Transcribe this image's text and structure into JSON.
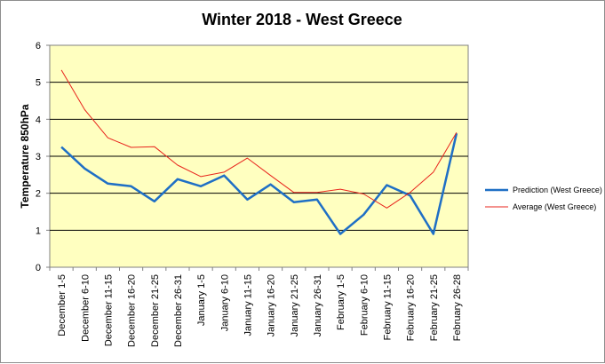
{
  "chart_data": {
    "type": "line",
    "title": "Winter 2018 - West Greece",
    "xlabel": "",
    "ylabel": "Temperature 850hPa",
    "ylim": [
      0,
      6
    ],
    "yticks": [
      0,
      1,
      2,
      3,
      4,
      5,
      6
    ],
    "grid": "horizontal",
    "legend_position": "right",
    "plot_background": "#ffffc0",
    "categories": [
      "December 1-5",
      "December 6-10",
      "December 11-15",
      "December 16-20",
      "December 21-25",
      "December 26-31",
      "January 1-5",
      "January 6-10",
      "January 11-15",
      "January 16-20",
      "January 21-25",
      "January 26-31",
      "February 1-5",
      "February 6-10",
      "February 11-15",
      "February 16-20",
      "February 21-25",
      "February 26-28"
    ],
    "series": [
      {
        "name": "Prediction (West Greece)",
        "color": "#1f6fc5",
        "values": [
          3.25,
          2.67,
          2.26,
          2.19,
          1.78,
          2.38,
          2.19,
          2.48,
          1.83,
          2.24,
          1.76,
          1.83,
          0.9,
          1.42,
          2.22,
          1.94,
          0.9,
          3.62
        ]
      },
      {
        "name": "Average (West Greece)",
        "color": "#e8241c",
        "values": [
          5.33,
          4.26,
          3.5,
          3.24,
          3.26,
          2.76,
          2.45,
          2.57,
          2.95,
          2.48,
          2.02,
          2.02,
          2.11,
          1.98,
          1.6,
          2.02,
          2.57,
          3.64
        ]
      }
    ]
  }
}
